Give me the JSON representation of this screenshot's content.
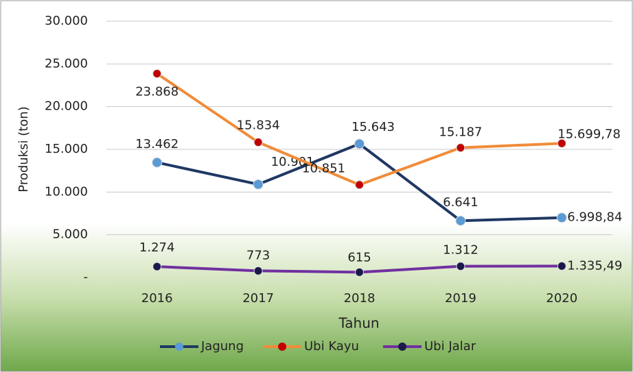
{
  "chart_data": {
    "type": "line",
    "categories": [
      "2016",
      "2017",
      "2018",
      "2019",
      "2020"
    ],
    "series": [
      {
        "name": "Jagung",
        "color": "#1f3864",
        "marker_color": "#5b9bd5",
        "values": [
          13462,
          10901,
          15643,
          6641,
          6998.84
        ],
        "value_labels": [
          "13.462",
          "10.901",
          "15.643",
          "6.641",
          "6.998,84"
        ]
      },
      {
        "name": "Ubi Kayu",
        "color": "#f08c3a",
        "marker_color": "#c00000",
        "values": [
          23868,
          15834,
          10851,
          15187,
          15699.78
        ],
        "value_labels": [
          "23.868",
          "15.834",
          "10.851",
          "15.187",
          "15.699,78"
        ]
      },
      {
        "name": "Ubi Jalar",
        "color": "#7030a0",
        "marker_color": "#1a1a4a",
        "values": [
          1274,
          773,
          615,
          1312,
          1335.49
        ],
        "value_labels": [
          "1.274",
          "773",
          "615",
          "1.312",
          "1.335,49"
        ]
      }
    ],
    "xlabel": "Tahun",
    "ylabel": "Produksi (ton)",
    "ylim": [
      0,
      30000
    ],
    "yticks": [
      {
        "value": 0,
        "label": "-"
      },
      {
        "value": 5000,
        "label": "5.000"
      },
      {
        "value": 10000,
        "label": "10.000"
      },
      {
        "value": 15000,
        "label": "15.000"
      },
      {
        "value": 20000,
        "label": "20.000"
      },
      {
        "value": 25000,
        "label": "25.000"
      },
      {
        "value": 30000,
        "label": "30.000"
      }
    ],
    "grid": true,
    "legend": "bottom"
  }
}
